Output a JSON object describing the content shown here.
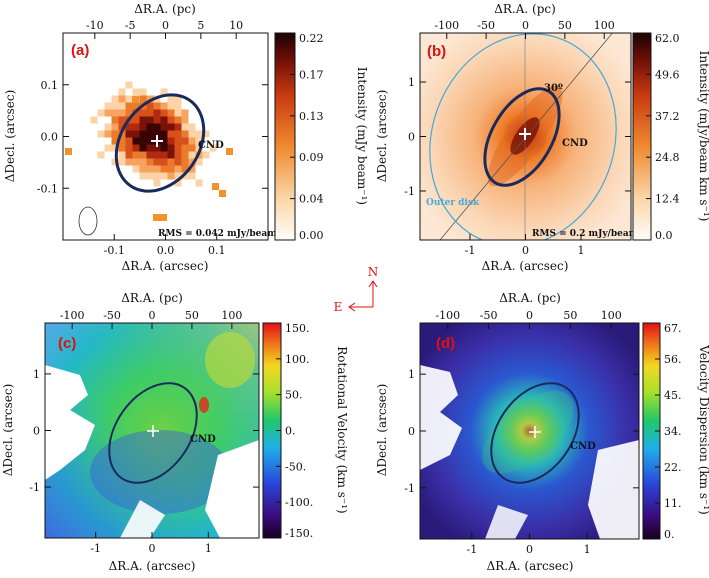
{
  "compass": {
    "north": "N",
    "east": "E"
  },
  "chart_data": [
    {
      "type": "heatmap",
      "panel_label": "(a)",
      "xlabel": "ΔR.A. (arcsec)",
      "ylabel": "ΔDecl. (arcsec)",
      "top_label": "ΔR.A. (pc)",
      "xlim": [
        0.2,
        -0.2
      ],
      "ylim": [
        -0.2,
        0.2
      ],
      "x_ticks": [
        "-0.1",
        "0.0",
        "0.1"
      ],
      "x_tick_values": [
        0.1,
        0.0,
        -0.1
      ],
      "y_ticks": [
        "-0.1",
        "0.0",
        "0.1"
      ],
      "y_tick_values": [
        -0.1,
        0.0,
        0.1
      ],
      "top_ticks": [
        "-10",
        "-5",
        "0",
        "5",
        "10"
      ],
      "top_tick_values": [
        -10,
        -5,
        0,
        5,
        10
      ],
      "colorbar": {
        "label": "Intensity (mJy beam⁻¹)",
        "ticks": [
          "0.22",
          "0.17",
          "0.13",
          "0.09",
          "0.04",
          "0.00"
        ],
        "range": [
          0.0,
          0.22
        ],
        "colormap": "orange-dark"
      },
      "annotations": {
        "cnd": "CND",
        "rms": "RMS = 0.042 mJy/beam"
      }
    },
    {
      "type": "heatmap",
      "panel_label": "(b)",
      "xlabel": "ΔR.A. (arcsec)",
      "ylabel": "ΔDecl. (arcsec)",
      "top_label": "ΔR.A. (pc)",
      "xlim": [
        1.9,
        -1.9
      ],
      "ylim": [
        -1.9,
        1.9
      ],
      "x_ticks": [
        "-1",
        "0",
        "1"
      ],
      "x_tick_values": [
        1,
        0,
        -1
      ],
      "y_ticks": [
        "-1",
        "0",
        "1"
      ],
      "y_tick_values": [
        -1,
        0,
        1
      ],
      "top_ticks": [
        "-100",
        "-50",
        "0",
        "50",
        "100"
      ],
      "top_tick_values": [
        -100,
        -50,
        0,
        50,
        100
      ],
      "colorbar": {
        "label": "Intensity (mJy/beam km s⁻¹)",
        "ticks": [
          "62.0",
          "49.6",
          "37.2",
          "24.8",
          "12.4",
          "0.0"
        ],
        "range": [
          0.0,
          62.0
        ],
        "colormap": "orange-dark"
      },
      "annotations": {
        "cnd": "CND",
        "angle": "30º",
        "outer": "Outer disk",
        "rms": "RMS = 0.2 mJy/beam"
      }
    },
    {
      "type": "heatmap",
      "panel_label": "(c)",
      "xlabel": "ΔR.A. (arcsec)",
      "ylabel": "ΔDecl. (arcsec)",
      "top_label": "ΔR.A. (pc)",
      "xlim": [
        1.9,
        -1.9
      ],
      "ylim": [
        -1.9,
        1.9
      ],
      "x_ticks": [
        "-1",
        "0",
        "1"
      ],
      "x_tick_values": [
        1,
        0,
        -1
      ],
      "y_ticks": [
        "-1",
        "0",
        "1"
      ],
      "y_tick_values": [
        -1,
        0,
        1
      ],
      "top_ticks": [
        "-100",
        "-50",
        "0",
        "50",
        "100"
      ],
      "top_tick_values": [
        -100,
        -50,
        0,
        50,
        100
      ],
      "colorbar": {
        "label": "Rotational Velocity (km s⁻¹)",
        "ticks": [
          "150.",
          "100.",
          "50.",
          "0.",
          "-50.",
          "-100.",
          "-150."
        ],
        "range": [
          -150,
          150
        ],
        "colormap": "rainbow"
      },
      "annotations": {
        "cnd": "CND"
      }
    },
    {
      "type": "heatmap",
      "panel_label": "(d)",
      "xlabel": "ΔR.A. (arcsec)",
      "ylabel": "ΔDecl. (arcsec)",
      "top_label": "ΔR.A. (pc)",
      "xlim": [
        1.9,
        -1.9
      ],
      "ylim": [
        -1.9,
        1.9
      ],
      "x_ticks": [
        "-1",
        "0",
        "1"
      ],
      "x_tick_values": [
        1,
        0,
        -1
      ],
      "y_ticks": [
        "-1",
        "0",
        "1"
      ],
      "y_tick_values": [
        -1,
        0,
        1
      ],
      "top_ticks": [
        "-100",
        "-50",
        "0",
        "50",
        "100"
      ],
      "top_tick_values": [
        -100,
        -50,
        0,
        50,
        100
      ],
      "colorbar": {
        "label": "Velocity Dispersion (km s⁻¹)",
        "ticks": [
          "67.",
          "56.",
          "45.",
          "34.",
          "22.",
          "11.",
          "0."
        ],
        "range": [
          0,
          67
        ],
        "colormap": "rainbow"
      },
      "annotations": {
        "cnd": "CND"
      }
    }
  ]
}
